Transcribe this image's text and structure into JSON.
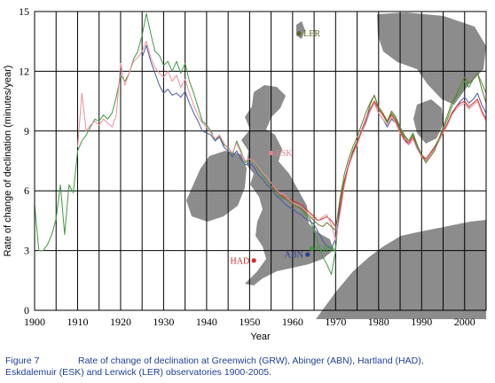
{
  "caption": {
    "figure": "Figure 7",
    "line1": "Rate of change of declination at Greenwich (GRW), Abinger (ABN), Hartland (HAD),",
    "line2": "Eskdalemuir (ESK) and Lerwick (LER) observatories 1900-2005."
  },
  "chart_data": {
    "type": "line",
    "xlabel": "Year",
    "ylabel": "Rate of change of declination (minutes/year)",
    "xlim": [
      1900,
      2005
    ],
    "ylim": [
      0,
      15
    ],
    "xticks": [
      1900,
      1910,
      1920,
      1930,
      1940,
      1950,
      1960,
      1970,
      1980,
      1990,
      2000
    ],
    "yticks": [
      0,
      3,
      6,
      9,
      12,
      15
    ],
    "grid": "vertical every 5 years, horizontal every 3 min/yr",
    "background": "map of Britain with observatory locations",
    "observatories": [
      {
        "code": "LER",
        "color": "#5a6b1a",
        "x": 1961.5,
        "y": 13.9
      },
      {
        "code": "ESK",
        "color": "#e8808a",
        "x": 1955,
        "y": 7.9
      },
      {
        "code": "GRW",
        "color": "#3f9a3f",
        "x": 1964.5,
        "y": 3.1
      },
      {
        "code": "ABN",
        "color": "#2d3f8f",
        "x": 1963.5,
        "y": 2.8
      },
      {
        "code": "HAD",
        "color": "#d02c2c",
        "x": 1951,
        "y": 2.5
      }
    ],
    "series": [
      {
        "name": "GRW",
        "color": "#3f9a3f",
        "x": [
          1900,
          1901,
          1902,
          1903,
          1904,
          1905,
          1906,
          1907,
          1908,
          1909,
          1910,
          1911,
          1912,
          1913,
          1914,
          1915,
          1916,
          1917,
          1918,
          1919,
          1920,
          1921,
          1922,
          1923,
          1924,
          1925,
          1926,
          1927,
          1928,
          1929,
          1930,
          1931,
          1932,
          1933,
          1934,
          1935,
          1936,
          1937,
          1938,
          1939,
          1940,
          1941,
          1942,
          1943,
          1944,
          1945,
          1946,
          1947,
          1948,
          1949,
          1950,
          1951,
          1952,
          1953,
          1954,
          1955,
          1956,
          1957,
          1958,
          1959,
          1960,
          1961,
          1962,
          1963,
          1964,
          1965,
          1966,
          1967,
          1968,
          1969,
          1970,
          1971,
          1972,
          1973,
          1974,
          1975,
          1976,
          1977,
          1978,
          1979,
          1980,
          1981,
          1982,
          1983,
          1984,
          1985,
          1986,
          1987,
          1988,
          1989,
          1990,
          1991,
          1992,
          1993,
          1994,
          1995,
          1996,
          1997,
          1998,
          1999,
          2000,
          2001,
          2002,
          2003,
          2004,
          2005
        ],
        "values": [
          5.3,
          3.0,
          3.0,
          3.3,
          3.8,
          4.6,
          6.3,
          3.8,
          6.3,
          5.9,
          8.0,
          8.5,
          8.8,
          9.2,
          9.6,
          9.5,
          9.8,
          9.6,
          9.9,
          10.7,
          11.8,
          11.5,
          11.9,
          12.6,
          13.0,
          13.8,
          14.9,
          13.9,
          13.0,
          12.8,
          12.3,
          12.5,
          12.0,
          12.5,
          11.9,
          12.4,
          11.5,
          10.9,
          10.2,
          9.5,
          9.3,
          9.0,
          8.5,
          8.8,
          8.3,
          8.2,
          7.8,
          8.5,
          8.0,
          7.4,
          7.6,
          7.5,
          7.1,
          6.8,
          6.5,
          6.2,
          5.8,
          5.7,
          5.6,
          5.5,
          5.3,
          5.2,
          5.1,
          4.8,
          4.6,
          4.0,
          3.3,
          2.7,
          2.3,
          1.8,
          3.0,
          5.5,
          6.5,
          7.3,
          8.0,
          8.5,
          9.0,
          9.5,
          10.3,
          10.8,
          10.1,
          9.8,
          9.4,
          9.9,
          9.6,
          9.1,
          8.7,
          8.5,
          8.9,
          8.3,
          7.8,
          7.5,
          7.8,
          8.2,
          8.6,
          9.1,
          9.6,
          10.2,
          10.7,
          11.0,
          11.5,
          11.2,
          11.6,
          11.9,
          11.4,
          10.9
        ]
      },
      {
        "name": "ABN",
        "color": "#4a5aa8",
        "x": [
          1925,
          1926,
          1927,
          1928,
          1929,
          1930,
          1931,
          1932,
          1933,
          1934,
          1935,
          1936,
          1937,
          1938,
          1939,
          1940,
          1941,
          1942,
          1943,
          1944,
          1945,
          1946,
          1947,
          1948,
          1949,
          1950,
          1951,
          1952,
          1953,
          1954,
          1955,
          1956,
          1957,
          1958,
          1959,
          1960,
          1961,
          1962,
          1963,
          1964,
          1965,
          1966,
          1967,
          1968,
          1969,
          1970,
          1971,
          1972,
          1973,
          1974,
          1975,
          1976,
          1977,
          1978,
          1979,
          1980,
          1981,
          1982,
          1983,
          1984,
          1985,
          1986,
          1987,
          1988,
          1989,
          1990,
          1991,
          1992,
          1993,
          1994,
          1995,
          1996,
          1997,
          1998,
          1999,
          2000,
          2001,
          2002,
          2003,
          2004,
          2005
        ],
        "values": [
          12.7,
          13.3,
          12.5,
          11.9,
          11.3,
          10.9,
          11.1,
          10.8,
          10.9,
          10.7,
          11.0,
          10.4,
          9.9,
          9.5,
          9.0,
          8.9,
          8.8,
          8.5,
          8.7,
          8.2,
          8.0,
          7.7,
          8.0,
          7.6,
          7.3,
          7.4,
          7.2,
          6.8,
          6.6,
          6.3,
          6.1,
          5.8,
          5.6,
          5.4,
          5.2,
          5.1,
          4.9,
          4.8,
          4.6,
          4.5,
          4.3,
          3.9,
          3.5,
          3.2,
          3.1,
          3.6,
          5.0,
          6.3,
          7.2,
          7.9,
          8.4,
          8.9,
          9.4,
          10.0,
          10.4,
          9.9,
          9.6,
          9.2,
          9.6,
          9.4,
          8.9,
          8.6,
          8.3,
          8.6,
          8.1,
          7.7,
          7.5,
          7.8,
          8.1,
          8.5,
          8.9,
          9.3,
          9.8,
          10.2,
          10.5,
          10.7,
          10.4,
          10.6,
          10.9,
          10.3,
          9.9
        ]
      },
      {
        "name": "HAD",
        "color": "#d02c2c",
        "x": [
          1955,
          1956,
          1957,
          1958,
          1959,
          1960,
          1961,
          1962,
          1963,
          1964,
          1965,
          1966,
          1967,
          1968,
          1969,
          1970,
          1971,
          1972,
          1973,
          1974,
          1975,
          1976,
          1977,
          1978,
          1979,
          1980,
          1981,
          1982,
          1983,
          1984,
          1985,
          1986,
          1987,
          1988,
          1989,
          1990,
          1991,
          1992,
          1993,
          1994,
          1995,
          1996,
          1997,
          1998,
          1999,
          2000,
          2001,
          2002,
          2003,
          2004,
          2005
        ],
        "values": [
          6.4,
          6.0,
          5.8,
          5.7,
          5.6,
          5.5,
          5.4,
          5.3,
          5.1,
          4.9,
          4.7,
          4.5,
          4.6,
          4.7,
          4.5,
          4.2,
          5.2,
          6.4,
          7.3,
          7.9,
          8.4,
          9.0,
          9.6,
          10.1,
          10.5,
          10.1,
          9.8,
          9.5,
          9.8,
          9.5,
          9.0,
          8.6,
          8.4,
          8.7,
          8.2,
          7.8,
          7.6,
          7.9,
          8.2,
          8.5,
          9.0,
          9.4,
          9.9,
          10.2,
          10.4,
          10.5,
          10.2,
          10.4,
          10.6,
          10.0,
          9.6
        ]
      },
      {
        "name": "ESK",
        "color": "#f08f9a",
        "x": [
          1910,
          1911,
          1912,
          1913,
          1914,
          1915,
          1916,
          1917,
          1918,
          1919,
          1920,
          1921,
          1922,
          1923,
          1924,
          1925,
          1926,
          1927,
          1928,
          1929,
          1930,
          1931,
          1932,
          1933,
          1934,
          1935,
          1936,
          1937,
          1938,
          1939,
          1940,
          1941,
          1942,
          1943,
          1944,
          1945,
          1946,
          1947,
          1948,
          1949,
          1950,
          1951,
          1952,
          1953,
          1954,
          1955,
          1956,
          1957,
          1958,
          1959,
          1960,
          1961,
          1962,
          1963,
          1964,
          1965,
          1966,
          1967,
          1968,
          1969,
          1970,
          1971,
          1972,
          1973,
          1974,
          1975,
          1976,
          1977,
          1978,
          1979,
          1980,
          1981,
          1982,
          1983,
          1984,
          1985,
          1986,
          1987,
          1988,
          1989,
          1990,
          1991,
          1992,
          1993,
          1994,
          1995,
          1996,
          1997,
          1998,
          1999,
          2000,
          2001,
          2002,
          2003,
          2004,
          2005
        ],
        "values": [
          8.2,
          10.9,
          9.0,
          9.3,
          9.5,
          9.3,
          9.6,
          9.4,
          9.2,
          9.8,
          12.4,
          11.3,
          11.9,
          12.5,
          12.7,
          13.0,
          13.5,
          12.7,
          12.2,
          11.9,
          11.7,
          12.0,
          11.5,
          11.8,
          11.2,
          11.6,
          10.9,
          10.3,
          9.8,
          9.4,
          9.2,
          8.9,
          8.6,
          8.8,
          8.4,
          8.1,
          7.9,
          8.4,
          7.9,
          7.5,
          7.6,
          7.5,
          7.2,
          6.9,
          6.7,
          6.4,
          6.1,
          5.9,
          5.8,
          5.6,
          5.4,
          5.3,
          5.2,
          5.0,
          4.8,
          4.6,
          4.5,
          4.7,
          4.8,
          4.3,
          3.5,
          4.8,
          6.2,
          7.2,
          7.8,
          8.3,
          8.9,
          9.5,
          10.0,
          10.4,
          9.9,
          9.6,
          9.3,
          9.7,
          9.4,
          8.9,
          8.5,
          8.3,
          8.6,
          8.1,
          7.7,
          7.5,
          7.8,
          8.1,
          8.5,
          8.9,
          9.3,
          9.8,
          10.1,
          10.3,
          10.4,
          10.1,
          10.3,
          10.5,
          9.9,
          9.5
        ]
      },
      {
        "name": "LER",
        "color": "#6b7a2a",
        "x": [
          1955,
          1956,
          1957,
          1958,
          1959,
          1960,
          1961,
          1962,
          1963,
          1964,
          1965,
          1966,
          1967,
          1968,
          1969,
          1970,
          1971,
          1972,
          1973,
          1974,
          1975,
          1976,
          1977,
          1978,
          1979,
          1980,
          1981,
          1982,
          1983,
          1984,
          1985,
          1986,
          1987,
          1988,
          1989,
          1990,
          1991,
          1992,
          1993,
          1994,
          1995,
          1996,
          1997,
          1998,
          1999,
          2000,
          2001,
          2002,
          2003,
          2004,
          2005
        ],
        "values": [
          6.2,
          6.0,
          5.8,
          5.6,
          5.5,
          5.3,
          5.2,
          5.1,
          4.9,
          4.7,
          4.5,
          4.3,
          4.2,
          4.4,
          4.2,
          4.0,
          5.6,
          6.8,
          7.6,
          8.2,
          8.7,
          9.3,
          9.9,
          10.4,
          10.8,
          10.2,
          9.9,
          9.5,
          10.0,
          9.7,
          9.2,
          8.8,
          8.5,
          8.8,
          8.2,
          7.8,
          7.4,
          7.7,
          8.0,
          8.6,
          9.2,
          9.8,
          10.4,
          10.8,
          11.3,
          11.7,
          11.4,
          11.6,
          11.9,
          11.1,
          10.4
        ]
      }
    ]
  }
}
